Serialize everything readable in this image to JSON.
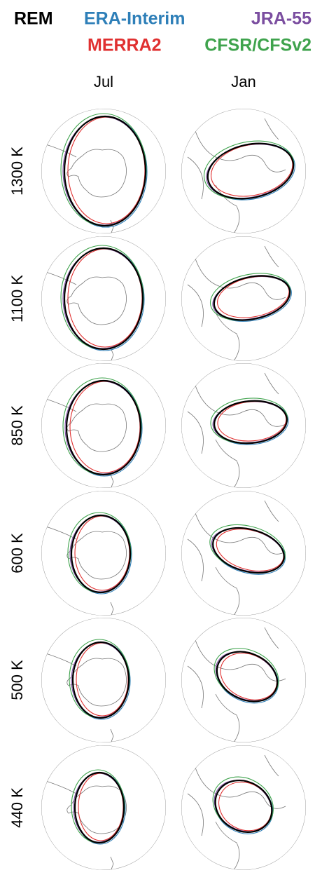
{
  "legend": [
    {
      "name": "REM",
      "color": "#000000"
    },
    {
      "name": "ERA-Interim",
      "color": "#2e7fb8"
    },
    {
      "name": "JRA-55",
      "color": "#7b4ea0"
    },
    {
      "name": "MERRA2",
      "color": "#e03030"
    },
    {
      "name": "CFSR/CFSv2",
      "color": "#3fa34d"
    }
  ],
  "columns": [
    "Jul",
    "Jan"
  ],
  "rows": [
    "1300 K",
    "1100 K",
    "850 K",
    "600 K",
    "500 K",
    "440 K"
  ]
}
